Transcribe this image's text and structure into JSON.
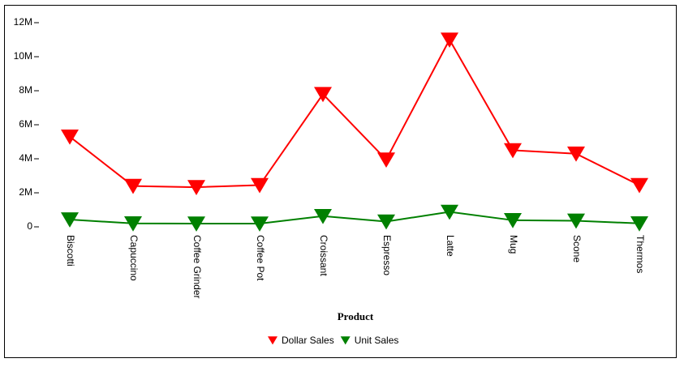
{
  "chart_data": {
    "type": "line",
    "x_label": "Product",
    "categories": [
      "Biscotti",
      "Capuccino",
      "Coffee Grinder",
      "Coffee Pot",
      "Croissant",
      "Espresso",
      "Latte",
      "Mug",
      "Scone",
      "Thermos"
    ],
    "series": [
      {
        "name": "Dollar Sales",
        "color": "#ff0000",
        "values": [
          5300000,
          2400000,
          2330000,
          2450000,
          7800000,
          3950000,
          11000000,
          4500000,
          4300000,
          2450000
        ]
      },
      {
        "name": "Unit Sales",
        "color": "#008000",
        "values": [
          430000,
          200000,
          190000,
          190000,
          630000,
          310000,
          880000,
          390000,
          360000,
          200000
        ]
      }
    ],
    "ylim": [
      0,
      12000000
    ],
    "yticks": [
      0,
      {
        "value": 2000000,
        "label": "2M"
      },
      {
        "value": 4000000,
        "label": "4M"
      },
      {
        "value": 6000000,
        "label": "6M"
      },
      {
        "value": 8000000,
        "label": "8M"
      },
      {
        "value": 10000000,
        "label": "10M"
      },
      {
        "value": 12000000,
        "label": "12M"
      }
    ],
    "legend": "bottom"
  }
}
